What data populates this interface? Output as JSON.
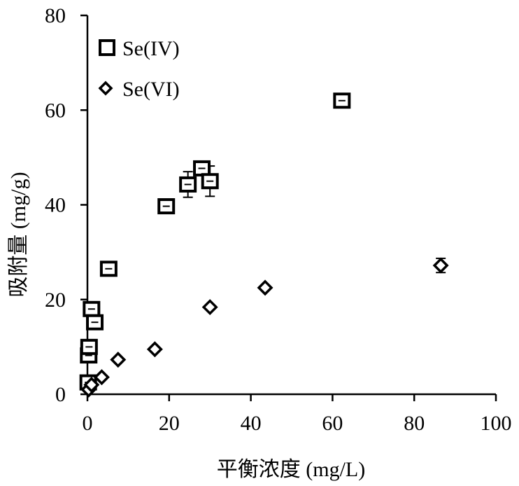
{
  "chart_data": {
    "type": "scatter",
    "title": "",
    "xlabel": "平衡浓度 (mg/L)",
    "ylabel": "吸附量 (mg/g)",
    "xlim": [
      0,
      100
    ],
    "ylim": [
      0,
      80
    ],
    "xticks": [
      0,
      20,
      40,
      60,
      80,
      100
    ],
    "yticks": [
      0,
      20,
      40,
      60,
      80
    ],
    "grid": false,
    "legend_position": "top-left",
    "series": [
      {
        "name": "Se(IV)",
        "marker": "square",
        "points": [
          {
            "x": 0.2,
            "y": 2.5,
            "err": 0
          },
          {
            "x": 0.3,
            "y": 8.2,
            "err": 0
          },
          {
            "x": 0.4,
            "y": 10.0,
            "err": 0
          },
          {
            "x": 1.0,
            "y": 18.0,
            "err": 0
          },
          {
            "x": 1.8,
            "y": 15.2,
            "err": 0
          },
          {
            "x": 5.2,
            "y": 26.5,
            "err": 0
          },
          {
            "x": 19.3,
            "y": 39.7,
            "err": 0
          },
          {
            "x": 24.6,
            "y": 44.3,
            "err": 2.7
          },
          {
            "x": 28.0,
            "y": 47.7,
            "err": 1.2
          },
          {
            "x": 30.0,
            "y": 45.0,
            "err": 3.2
          },
          {
            "x": 62.3,
            "y": 62.0,
            "err": 0
          }
        ]
      },
      {
        "name": "Se(VI)",
        "marker": "diamond",
        "points": [
          {
            "x": 0.3,
            "y": 1.0,
            "err": 0
          },
          {
            "x": 1.0,
            "y": 2.0,
            "err": 0
          },
          {
            "x": 3.5,
            "y": 3.6,
            "err": 0
          },
          {
            "x": 7.5,
            "y": 7.3,
            "err": 0
          },
          {
            "x": 16.5,
            "y": 9.5,
            "err": 0
          },
          {
            "x": 30.0,
            "y": 18.4,
            "err": 0
          },
          {
            "x": 43.5,
            "y": 22.5,
            "err": 0
          },
          {
            "x": 86.5,
            "y": 27.2,
            "err": 1.5
          }
        ]
      }
    ]
  }
}
